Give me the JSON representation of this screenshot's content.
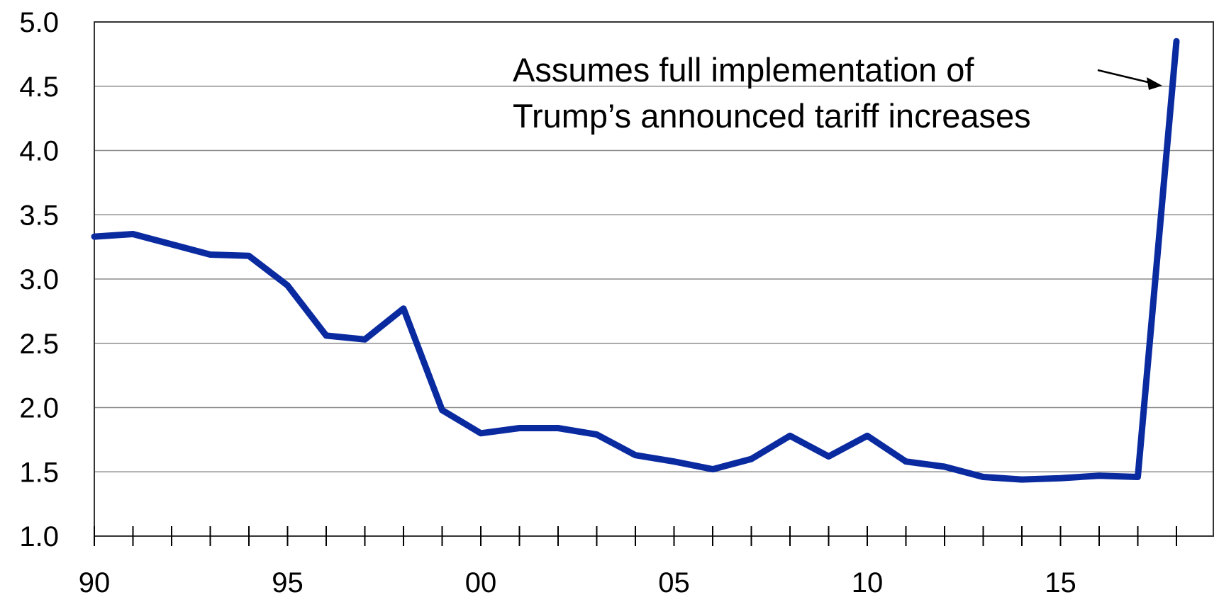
{
  "chart_data": {
    "type": "line",
    "title": "",
    "xlabel": "",
    "ylabel": "",
    "x_tick_labels": [
      "90",
      "95",
      "00",
      "05",
      "10",
      "15"
    ],
    "y_tick_labels": [
      "1.0",
      "1.5",
      "2.0",
      "2.5",
      "3.0",
      "3.5",
      "4.0",
      "4.5",
      "5.0"
    ],
    "xlim": [
      1990,
      2019
    ],
    "ylim": [
      1.0,
      5.0
    ],
    "grid": "horizontal",
    "series": [
      {
        "color": "#0a2aa0",
        "x": [
          1990,
          1991,
          1992,
          1993,
          1994,
          1995,
          1996,
          1997,
          1998,
          1999,
          2000,
          2001,
          2002,
          2003,
          2004,
          2005,
          2006,
          2007,
          2008,
          2009,
          2010,
          2011,
          2012,
          2013,
          2014,
          2015,
          2016,
          2017,
          2018
        ],
        "values": [
          3.33,
          3.35,
          3.27,
          3.19,
          3.18,
          2.95,
          2.56,
          2.53,
          2.77,
          1.98,
          1.8,
          1.84,
          1.84,
          1.79,
          1.63,
          1.58,
          1.52,
          1.6,
          1.78,
          1.62,
          1.78,
          1.58,
          1.54,
          1.46,
          1.44,
          1.45,
          1.47,
          1.46,
          4.85
        ]
      }
    ],
    "annotation": {
      "lines": [
        "Assumes full implementation of",
        "Trump’s announced tariff increases"
      ],
      "points_to_x": 2018
    }
  }
}
